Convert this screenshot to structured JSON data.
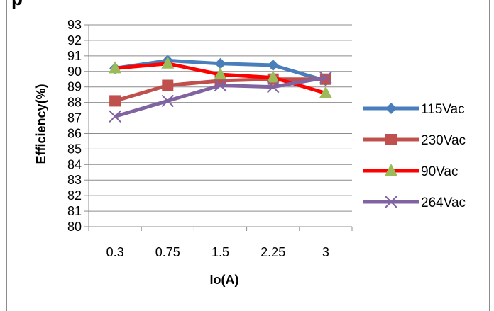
{
  "chart_data": {
    "type": "line",
    "title": "",
    "title_fragment": "p",
    "xlabel": "Io(A)",
    "ylabel": "Efficiency(%)",
    "categories": [
      "0.3",
      "0.75",
      "1.5",
      "2.25",
      "3"
    ],
    "ylim": [
      80,
      93
    ],
    "yticks": [
      80,
      81,
      82,
      83,
      84,
      85,
      86,
      87,
      88,
      89,
      90,
      91,
      92,
      93
    ],
    "grid": true,
    "legend_position": "right",
    "series": [
      {
        "name": "115Vac",
        "values": [
          90.2,
          90.7,
          90.5,
          90.4,
          89.4
        ],
        "color": "#4a7ebb",
        "marker": "diamond"
      },
      {
        "name": "230Vac",
        "values": [
          88.1,
          89.1,
          89.4,
          89.5,
          89.5
        ],
        "color": "#c0504d",
        "marker": "square"
      },
      {
        "name": "90Vac",
        "values": [
          90.2,
          90.5,
          89.8,
          89.6,
          88.6
        ],
        "color": "#ff0000",
        "marker": "triangle",
        "marker_color": "#9bbb59"
      },
      {
        "name": "264Vac",
        "values": [
          87.1,
          88.1,
          89.1,
          89.0,
          89.6
        ],
        "color": "#8064a2",
        "marker": "x"
      }
    ]
  }
}
